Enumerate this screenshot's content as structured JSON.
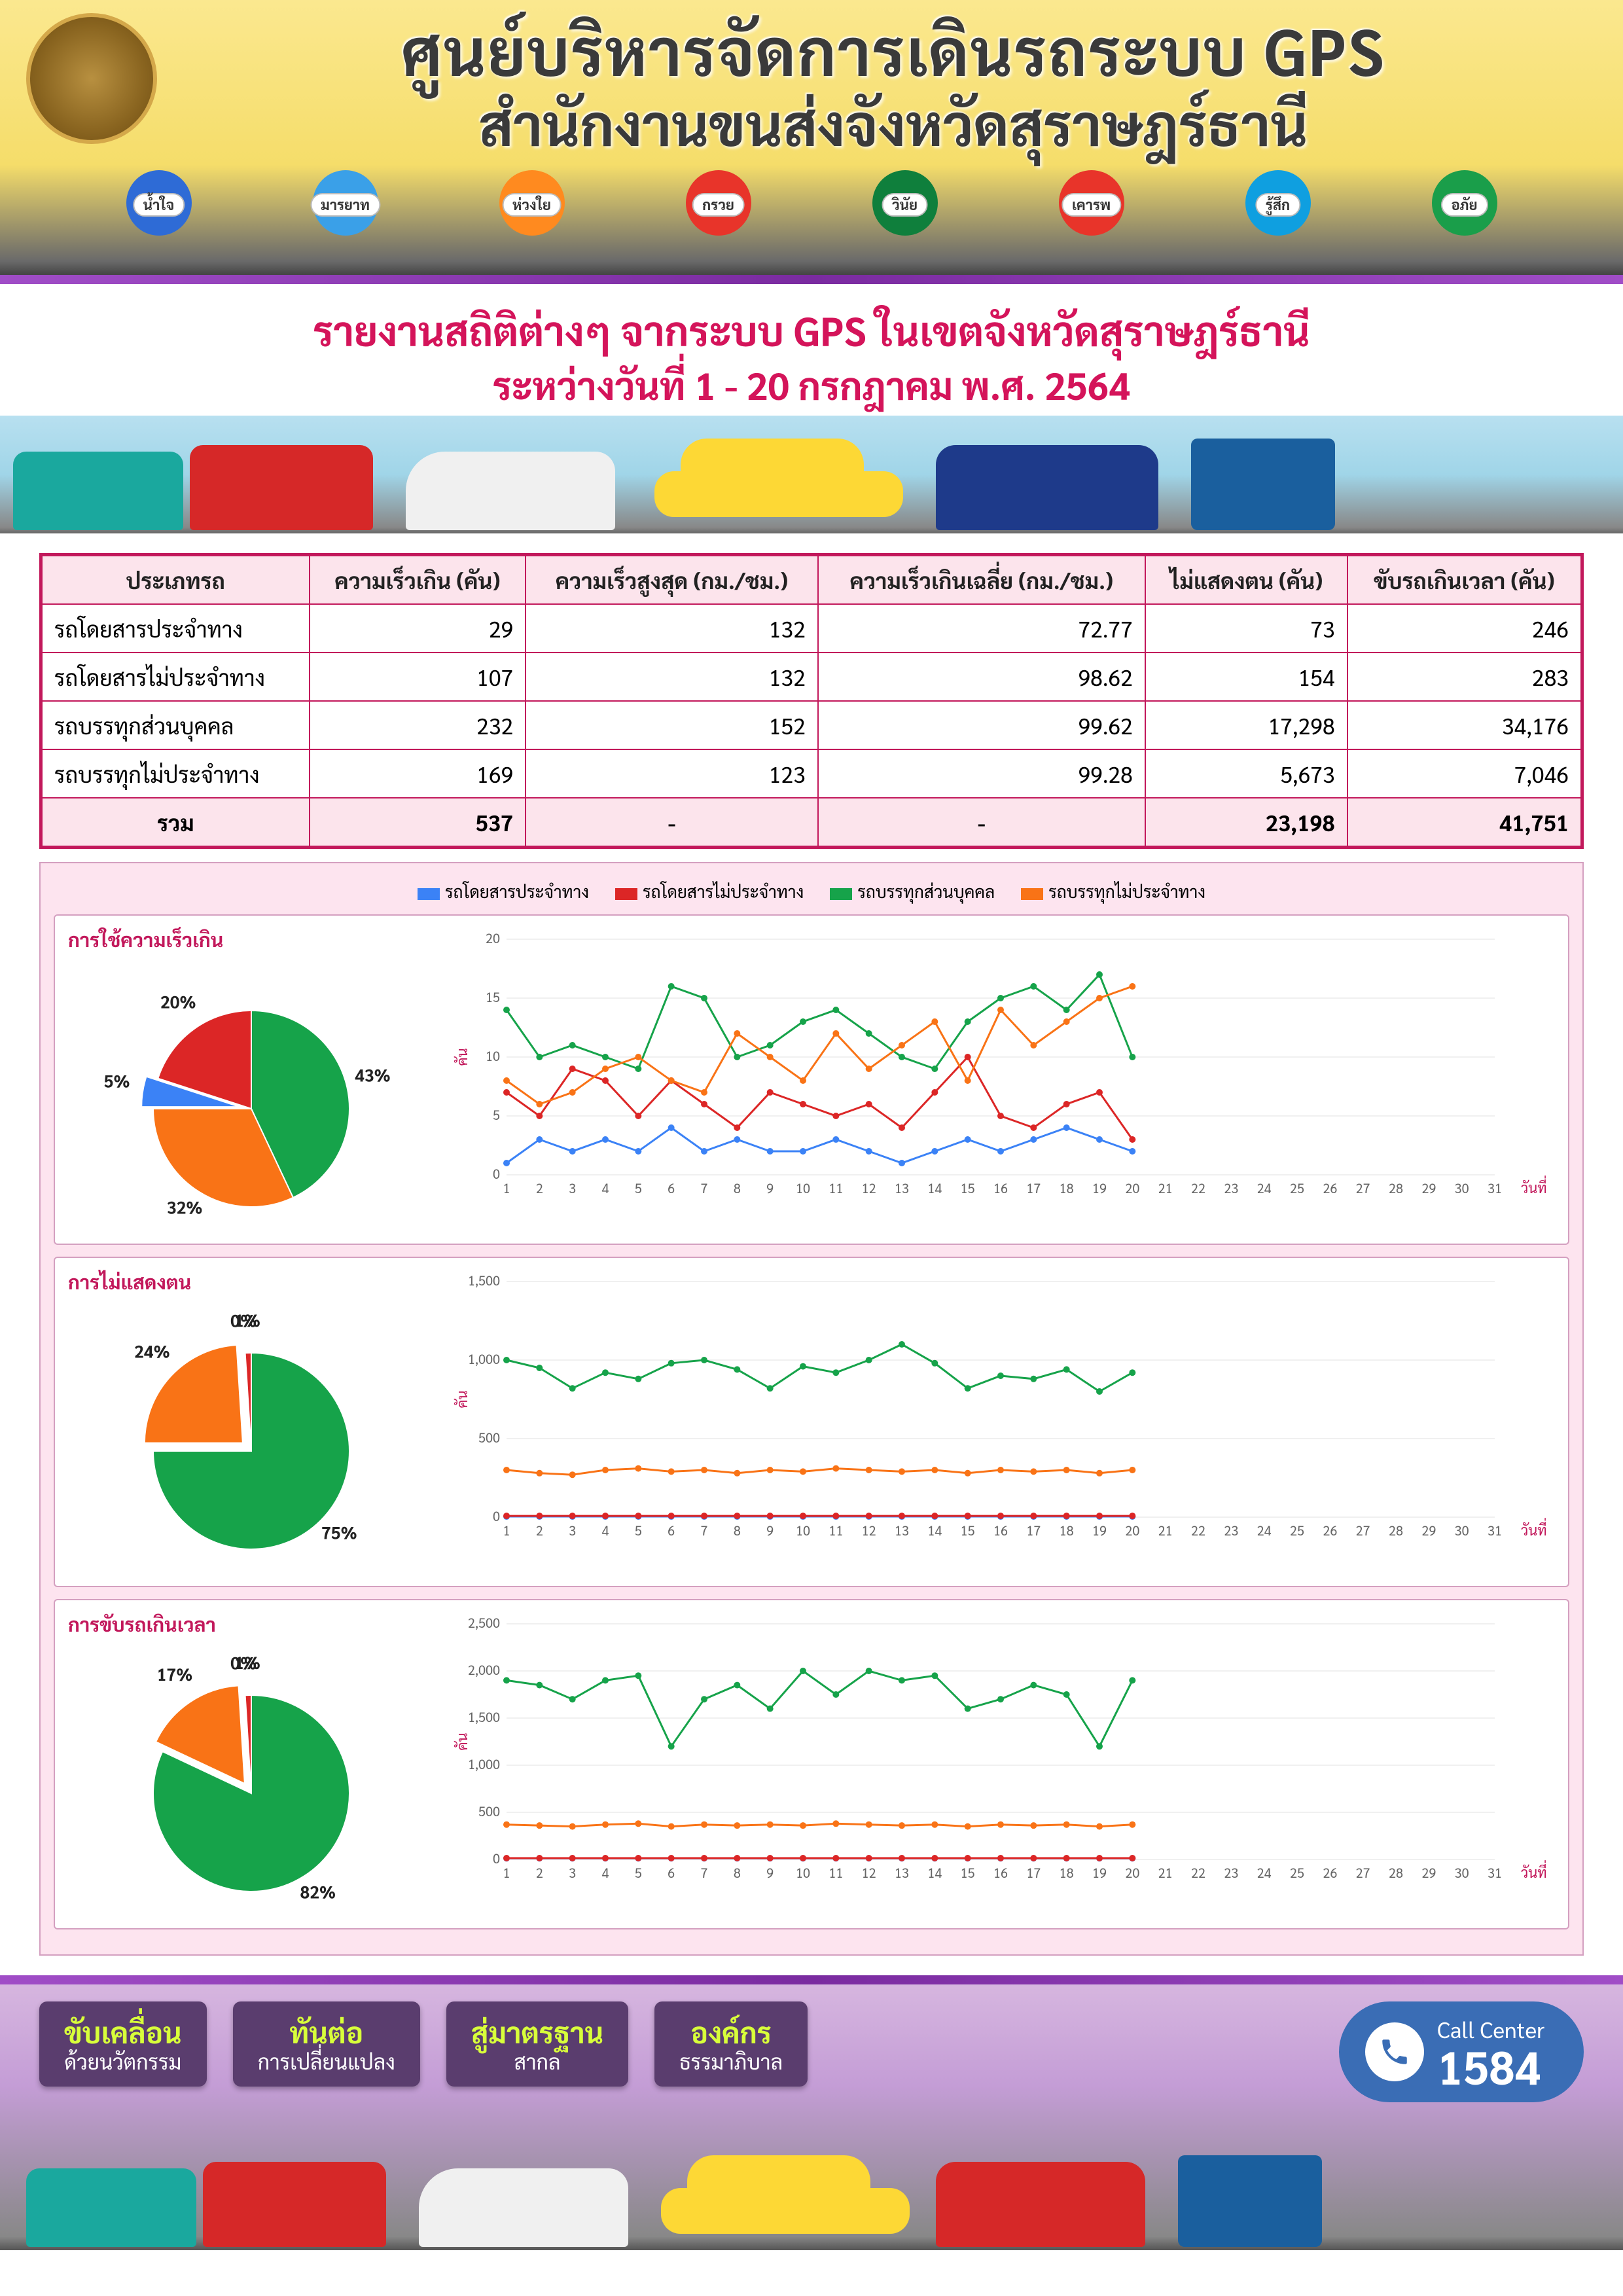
{
  "header": {
    "line1": "ศูนย์บริหารจัดการเดินรถระบบ GPS",
    "line2": "สำนักงานขนส่งจังหวัดสุราษฎร์ธานี",
    "mascots": [
      "น้ำใจ",
      "มารยาท",
      "ห่วงใย",
      "กรวย",
      "วินัย",
      "เคารพ",
      "รู้สึก",
      "อภัย"
    ],
    "mascot_colors": [
      "#2e6bd6",
      "#3aa0e8",
      "#ff8a1f",
      "#e8342a",
      "#0f7f3c",
      "#e8342a",
      "#0f9fe0",
      "#1a9e4a"
    ]
  },
  "report": {
    "title1": "รายงานสถิติต่างๆ จากระบบ GPS ในเขตจังหวัดสุราษฎร์ธานี",
    "title2": "ระหว่างวันที่ 1 - 20 กรกฎาคม พ.ศ. 2564"
  },
  "table": {
    "headers": [
      "ประเภทรถ",
      "ความเร็วเกิน (คัน)",
      "ความเร็วสูงสุด (กม./ชม.)",
      "ความเร็วเกินเฉลี่ย (กม./ชม.)",
      "ไม่แสดงตน (คัน)",
      "ขับรถเกินเวลา (คัน)"
    ],
    "rows": [
      [
        "รถโดยสารประจำทาง",
        "29",
        "132",
        "72.77",
        "73",
        "246"
      ],
      [
        "รถโดยสารไม่ประจำทาง",
        "107",
        "132",
        "98.62",
        "154",
        "283"
      ],
      [
        "รถบรรทุกส่วนบุคคล",
        "232",
        "152",
        "99.62",
        "17,298",
        "34,176"
      ],
      [
        "รถบรรทุกไม่ประจำทาง",
        "169",
        "123",
        "99.28",
        "5,673",
        "7,046"
      ]
    ],
    "total_label": "รวม",
    "total_row": [
      "537",
      "-",
      "-",
      "23,198",
      "41,751"
    ]
  },
  "legend": {
    "items": [
      {
        "label": "รถโดยสารประจำทาง",
        "color": "#3b82f6"
      },
      {
        "label": "รถโดยสารไม่ประจำทาง",
        "color": "#dc2626"
      },
      {
        "label": "รถบรรทุกส่วนบุคคล",
        "color": "#16a34a"
      },
      {
        "label": "รถบรรทุกไม่ประจำทาง",
        "color": "#f97316"
      }
    ]
  },
  "charts": [
    {
      "title": "การใช้ความเร็วเกิน",
      "pie": {
        "slices": [
          {
            "pct": 43,
            "color": "#16a34a",
            "label": "43%"
          },
          {
            "pct": 32,
            "color": "#f97316",
            "label": "32%"
          },
          {
            "pct": 5,
            "color": "#3b82f6",
            "label": "5%"
          },
          {
            "pct": 20,
            "color": "#dc2626",
            "label": "20%"
          }
        ],
        "pull_index": 2
      },
      "line": {
        "ylim": [
          0,
          20
        ],
        "yticks": [
          0,
          5,
          10,
          15,
          20
        ],
        "ylabel": "คัน",
        "xlabel": "วันที่",
        "x": [
          1,
          2,
          3,
          4,
          5,
          6,
          7,
          8,
          9,
          10,
          11,
          12,
          13,
          14,
          15,
          16,
          17,
          18,
          19,
          20
        ],
        "xmax": 31,
        "series": [
          {
            "color": "#3b82f6",
            "values": [
              1,
              3,
              2,
              3,
              2,
              4,
              2,
              3,
              2,
              2,
              3,
              2,
              1,
              2,
              3,
              2,
              3,
              4,
              3,
              2
            ]
          },
          {
            "color": "#dc2626",
            "values": [
              7,
              5,
              9,
              8,
              5,
              8,
              6,
              4,
              7,
              6,
              5,
              6,
              4,
              7,
              10,
              5,
              4,
              6,
              7,
              3
            ]
          },
          {
            "color": "#16a34a",
            "values": [
              14,
              10,
              11,
              10,
              9,
              16,
              15,
              10,
              11,
              13,
              14,
              12,
              10,
              9,
              13,
              15,
              16,
              14,
              17,
              10
            ]
          },
          {
            "color": "#f97316",
            "values": [
              8,
              6,
              7,
              9,
              10,
              8,
              7,
              12,
              10,
              8,
              12,
              9,
              11,
              13,
              8,
              14,
              11,
              13,
              15,
              16
            ]
          }
        ]
      }
    },
    {
      "title": "การไม่แสดงตน",
      "pie": {
        "slices": [
          {
            "pct": 75,
            "color": "#16a34a",
            "label": "75%"
          },
          {
            "pct": 24,
            "color": "#f97316",
            "label": "24%"
          },
          {
            "pct": 0,
            "color": "#3b82f6",
            "label": "0%"
          },
          {
            "pct": 1,
            "color": "#dc2626",
            "label": "1%"
          }
        ],
        "pull_index": 1
      },
      "line": {
        "ylim": [
          0,
          1500
        ],
        "yticks": [
          0,
          500,
          1000,
          1500
        ],
        "ylabel": "คัน",
        "xlabel": "วันที่",
        "x": [
          1,
          2,
          3,
          4,
          5,
          6,
          7,
          8,
          9,
          10,
          11,
          12,
          13,
          14,
          15,
          16,
          17,
          18,
          19,
          20
        ],
        "xmax": 31,
        "series": [
          {
            "color": "#3b82f6",
            "values": [
              4,
              4,
              4,
              4,
              4,
              4,
              4,
              4,
              4,
              4,
              4,
              4,
              4,
              4,
              4,
              4,
              4,
              4,
              4,
              4
            ]
          },
          {
            "color": "#dc2626",
            "values": [
              8,
              8,
              8,
              8,
              8,
              8,
              8,
              8,
              8,
              8,
              8,
              8,
              8,
              8,
              8,
              8,
              8,
              8,
              8,
              8
            ]
          },
          {
            "color": "#16a34a",
            "values": [
              1000,
              950,
              820,
              920,
              880,
              980,
              1000,
              940,
              820,
              960,
              920,
              1000,
              1100,
              980,
              820,
              900,
              880,
              940,
              800,
              920
            ]
          },
          {
            "color": "#f97316",
            "values": [
              300,
              280,
              270,
              300,
              310,
              290,
              300,
              280,
              300,
              290,
              310,
              300,
              290,
              300,
              280,
              300,
              290,
              300,
              280,
              300
            ]
          }
        ]
      }
    },
    {
      "title": "การขับรถเกินเวลา",
      "pie": {
        "slices": [
          {
            "pct": 82,
            "color": "#16a34a",
            "label": "82%"
          },
          {
            "pct": 17,
            "color": "#f97316",
            "label": "17%"
          },
          {
            "pct": 0,
            "color": "#3b82f6",
            "label": "0%"
          },
          {
            "pct": 1,
            "color": "#dc2626",
            "label": "1%"
          }
        ],
        "pull_index": 1
      },
      "line": {
        "ylim": [
          0,
          2500
        ],
        "yticks": [
          0,
          500,
          1000,
          1500,
          2000,
          2500
        ],
        "ylabel": "คัน",
        "xlabel": "วันที่",
        "x": [
          1,
          2,
          3,
          4,
          5,
          6,
          7,
          8,
          9,
          10,
          11,
          12,
          13,
          14,
          15,
          16,
          17,
          18,
          19,
          20
        ],
        "xmax": 31,
        "series": [
          {
            "color": "#3b82f6",
            "values": [
              12,
              12,
              12,
              12,
              12,
              12,
              12,
              12,
              12,
              12,
              12,
              12,
              12,
              12,
              12,
              12,
              12,
              12,
              12,
              12
            ]
          },
          {
            "color": "#dc2626",
            "values": [
              14,
              14,
              14,
              14,
              14,
              14,
              14,
              14,
              14,
              14,
              14,
              14,
              14,
              14,
              14,
              14,
              14,
              14,
              14,
              14
            ]
          },
          {
            "color": "#16a34a",
            "values": [
              1900,
              1850,
              1700,
              1900,
              1950,
              1200,
              1700,
              1850,
              1600,
              2000,
              1750,
              2000,
              1900,
              1950,
              1600,
              1700,
              1850,
              1750,
              1200,
              1900
            ]
          },
          {
            "color": "#f97316",
            "values": [
              370,
              360,
              350,
              370,
              380,
              350,
              370,
              360,
              370,
              360,
              380,
              370,
              360,
              370,
              350,
              370,
              360,
              370,
              350,
              370
            ]
          }
        ]
      }
    }
  ],
  "footer": {
    "cards": [
      {
        "big": "ขับเคลื่อน",
        "small": "ด้วยนวัตกรรม"
      },
      {
        "big": "ทันต่อ",
        "small": "การเปลี่ยนแปลง"
      },
      {
        "big": "สู่มาตรฐาน",
        "small": "สากล"
      },
      {
        "big": "องค์กร",
        "small": "ธรรมาภิบาล"
      }
    ],
    "call_label": "Call Center",
    "call_number": "1584"
  },
  "style": {
    "table_border": "#c2185b",
    "table_headbg": "#fce4ec",
    "panel_bg": "#fde4ef",
    "grid_color": "#e0e0e0"
  }
}
